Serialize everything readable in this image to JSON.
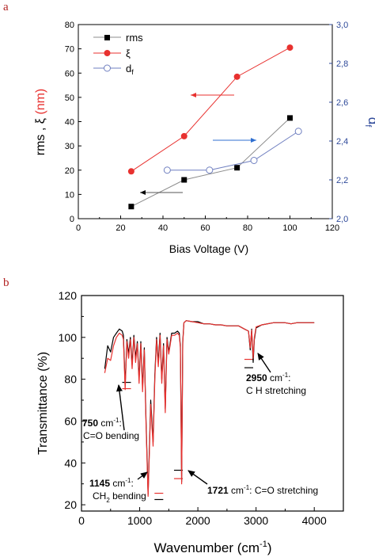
{
  "panels": {
    "a": "a",
    "b": "b"
  },
  "chart_data": [
    {
      "type": "scatter",
      "title": "",
      "xlabel": "Bias Voltage (V)",
      "ylabel_left": "rms , ξ (nm)",
      "ylabel_left_parts": {
        "a": "rms , ",
        "b": "ξ",
        "c": " (nm)"
      },
      "ylabel_right": "df",
      "ylabel_right_parts": {
        "base": "d",
        "sub": "f"
      },
      "xlim": [
        0,
        120
      ],
      "ylim_left": [
        0,
        80
      ],
      "ylim_right": [
        2.0,
        3.0
      ],
      "xticks": [
        "0",
        "20",
        "40",
        "60",
        "80",
        "100",
        "120"
      ],
      "yticks_left": [
        "0",
        "10",
        "20",
        "30",
        "40",
        "50",
        "60",
        "70",
        "80"
      ],
      "yticks_right": [
        "2,0",
        "2,2",
        "2,4",
        "2,6",
        "2,8",
        "3,0"
      ],
      "grid": false,
      "legend_position": "top-left",
      "legend": {
        "rms": "rms",
        "xi": "ξ",
        "df_base": "d",
        "df_sub": "f"
      },
      "series": [
        {
          "name": "rms",
          "axis": "left",
          "color": "#000000",
          "marker": "square",
          "x": [
            25,
            50,
            75,
            100
          ],
          "y": [
            5,
            16,
            21,
            41.5
          ]
        },
        {
          "name": "ξ",
          "axis": "left",
          "color": "#e8312f",
          "marker": "circle",
          "x": [
            25,
            50,
            75,
            100
          ],
          "y": [
            19.5,
            34,
            58.5,
            70.5
          ]
        },
        {
          "name": "df",
          "axis": "right",
          "color": "#6f7fc0",
          "marker": "open-circle",
          "x": [
            42,
            62,
            83,
            104
          ],
          "y": [
            2.25,
            2.25,
            2.3,
            2.45
          ]
        }
      ],
      "colors": {
        "axis": "#000000",
        "right_axis": "#2f4a9a",
        "line": "#8c8c8c"
      }
    },
    {
      "type": "line",
      "title": "",
      "xlabel": "Wavenumber (cm-1)",
      "xlabel_parts": {
        "main": "Wavenumber (cm",
        "sup": "-1",
        "close": ")"
      },
      "ylabel": "Transmittance (%)",
      "xlim": [
        0,
        4500
      ],
      "ylim": [
        17,
        120
      ],
      "xticks": [
        "0",
        "1000",
        "2000",
        "3000",
        "4000"
      ],
      "yticks": [
        "20",
        "40",
        "60",
        "80",
        "100",
        "120"
      ],
      "grid": false,
      "series": [
        {
          "name": "",
          "color": "#000000",
          "x": [
            400,
            450,
            500,
            550,
            600,
            650,
            700,
            720,
            750,
            780,
            810,
            840,
            870,
            900,
            930,
            960,
            990,
            1020,
            1050,
            1080,
            1110,
            1130,
            1145,
            1160,
            1190,
            1230,
            1260,
            1290,
            1320,
            1350,
            1380,
            1410,
            1440,
            1470,
            1500,
            1550,
            1600,
            1650,
            1680,
            1700,
            1721,
            1740,
            1760,
            1800,
            1900,
            2000,
            2100,
            2200,
            2300,
            2400,
            2500,
            2600,
            2700,
            2800,
            2870,
            2900,
            2925,
            2950,
            2970,
            3000,
            3100,
            3300,
            3500,
            3600,
            3700,
            3800,
            3900,
            4000
          ],
          "y": [
            85,
            96,
            93,
            100,
            102,
            104,
            103,
            101,
            77,
            99,
            92,
            100,
            87,
            101,
            90,
            98,
            80,
            98,
            76,
            95,
            60,
            40,
            25,
            40,
            70,
            50,
            82,
            100,
            88,
            102,
            80,
            97,
            66,
            100,
            93,
            102,
            102,
            103,
            102,
            96,
            31,
            98,
            107,
            108,
            107.5,
            107.5,
            106.5,
            106.5,
            106,
            106,
            105.5,
            105.5,
            105.5,
            104,
            103,
            94,
            104,
            88,
            99,
            104.5,
            106,
            107,
            107,
            106.5,
            107,
            107,
            107,
            107
          ]
        },
        {
          "name": "",
          "color": "#e8312f",
          "x": [
            400,
            450,
            500,
            550,
            600,
            650,
            700,
            720,
            750,
            780,
            810,
            840,
            870,
            900,
            930,
            960,
            990,
            1020,
            1050,
            1080,
            1110,
            1130,
            1145,
            1160,
            1190,
            1230,
            1260,
            1290,
            1320,
            1350,
            1380,
            1410,
            1440,
            1470,
            1500,
            1550,
            1600,
            1650,
            1680,
            1700,
            1721,
            1740,
            1760,
            1800,
            1900,
            2000,
            2100,
            2200,
            2300,
            2400,
            2500,
            2600,
            2700,
            2800,
            2870,
            2900,
            2925,
            2950,
            2970,
            3000,
            3100,
            3300,
            3500,
            3600,
            3700,
            3800,
            3900,
            4000
          ],
          "y": [
            83,
            90,
            89,
            96,
            100,
            102,
            101,
            99,
            75,
            98,
            90,
            99,
            85,
            100,
            88,
            97,
            78,
            97,
            74,
            94,
            58,
            38,
            24,
            38,
            68,
            48,
            80,
            99,
            86,
            101,
            78,
            96,
            64,
            99,
            92,
            101,
            101,
            102,
            101,
            95,
            30,
            97,
            107,
            108,
            107.5,
            107,
            106.5,
            106.5,
            106,
            106,
            105.5,
            105.5,
            105.5,
            104,
            103,
            95,
            103.5,
            90,
            100,
            105,
            106,
            107,
            107,
            106.5,
            107,
            107,
            107,
            107
          ]
        }
      ],
      "reference_marks": [
        {
          "x": [
            700,
            850
          ],
          "y": 75.5,
          "color": "#e8312f"
        },
        {
          "x": [
            700,
            850
          ],
          "y": 78.5,
          "color": "#000000"
        },
        {
          "x": [
            1255,
            1405
          ],
          "y": 25.5,
          "color": "#e8312f"
        },
        {
          "x": [
            1255,
            1405
          ],
          "y": 22.5,
          "color": "#000000"
        },
        {
          "x": [
            1590,
            1740
          ],
          "y": 36.5,
          "color": "#000000"
        },
        {
          "x": [
            1590,
            1740
          ],
          "y": 32.5,
          "color": "#e8312f"
        },
        {
          "x": [
            2800,
            2950
          ],
          "y": 89.5,
          "color": "#e8312f"
        },
        {
          "x": [
            2800,
            2950
          ],
          "y": 85.5,
          "color": "#000000"
        }
      ],
      "annotations": [
        {
          "id": "750",
          "num": "750",
          "unit": " cm",
          "sup": "-1",
          "tail": ":",
          "line2": "C=O bending"
        },
        {
          "id": "1145",
          "num": "1145",
          "unit": " cm",
          "sup": "-1",
          "tail": ":",
          "line2_a": "CH",
          "line2_sub": "2",
          "line2_b": " bending"
        },
        {
          "id": "1721",
          "num": "1721",
          "unit": " cm",
          "sup": "-1",
          "tail": ": C=O stretching"
        },
        {
          "id": "2950",
          "num": "2950",
          "unit": " cm",
          "sup": "-1",
          "tail": ":",
          "line2": "C H stretching"
        }
      ]
    }
  ]
}
